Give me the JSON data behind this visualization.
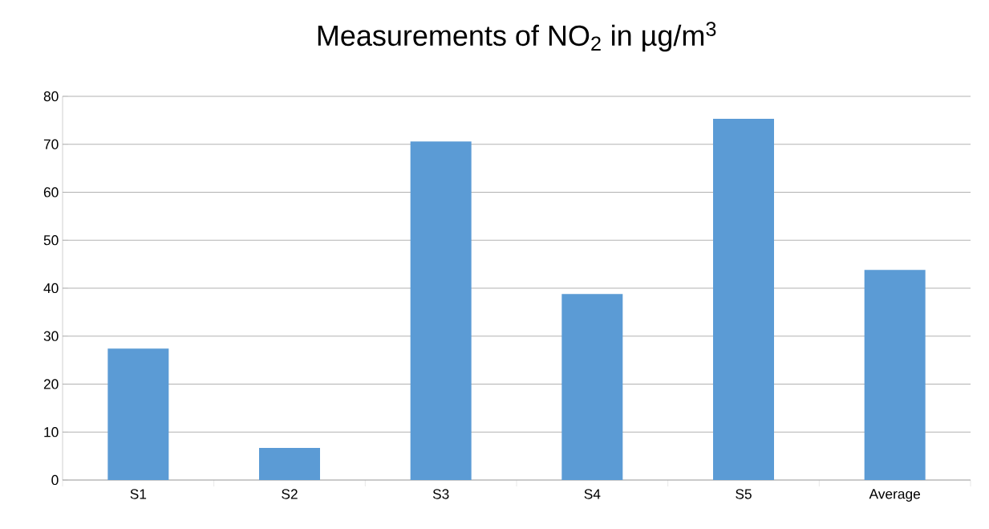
{
  "chart_data": {
    "type": "bar",
    "title": "Measurements of NO$_{2}$ in µg/m$^{3}$",
    "categories": [
      "S1",
      "S2",
      "S3",
      "S4",
      "S5",
      "Average"
    ],
    "values": [
      27.4,
      6.7,
      70.6,
      38.8,
      75.3,
      43.8
    ],
    "color": "#5b9bd5",
    "ylim": [
      0,
      80
    ],
    "yticks": [
      0,
      10,
      20,
      30,
      40,
      50,
      60,
      70,
      80
    ],
    "grid": "y"
  }
}
